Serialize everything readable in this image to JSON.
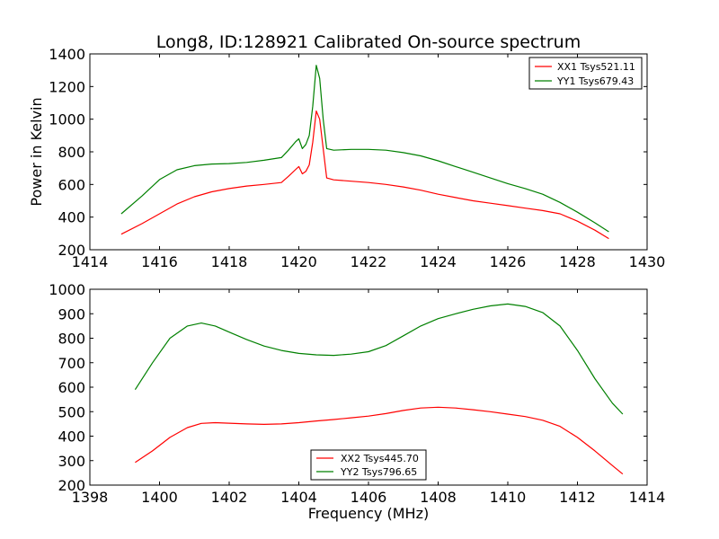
{
  "chart_data": [
    {
      "type": "line",
      "title": "Long8, ID:128921 Calibrated On-source spectrum",
      "xlabel": "",
      "ylabel": "Power in Kelvin",
      "xlim": [
        1414,
        1430
      ],
      "ylim": [
        200,
        1400
      ],
      "xticks": [
        1414,
        1416,
        1418,
        1420,
        1422,
        1424,
        1426,
        1428,
        1430
      ],
      "yticks": [
        200,
        400,
        600,
        800,
        1000,
        1200,
        1400
      ],
      "legend_position": "top-right",
      "series": [
        {
          "name": "XX1 Tsys521.11",
          "color": "#ff0000",
          "x": [
            1414.9,
            1415.5,
            1416.0,
            1416.5,
            1417.0,
            1417.5,
            1418.0,
            1418.5,
            1419.0,
            1419.5,
            1419.7,
            1419.9,
            1420.0,
            1420.1,
            1420.2,
            1420.3,
            1420.4,
            1420.5,
            1420.6,
            1420.7,
            1420.8,
            1421.0,
            1421.5,
            1422.0,
            1422.5,
            1423.0,
            1423.5,
            1424.0,
            1424.5,
            1425.0,
            1425.5,
            1426.0,
            1426.5,
            1427.0,
            1427.5,
            1428.0,
            1428.5,
            1428.9
          ],
          "y": [
            295,
            360,
            420,
            480,
            525,
            555,
            575,
            590,
            600,
            612,
            650,
            690,
            710,
            665,
            680,
            720,
            860,
            1050,
            1000,
            820,
            640,
            628,
            620,
            612,
            600,
            585,
            565,
            540,
            520,
            500,
            485,
            470,
            455,
            440,
            420,
            375,
            320,
            268
          ]
        },
        {
          "name": "YY1 Tsys679.43",
          "color": "#008000",
          "x": [
            1414.9,
            1415.5,
            1416.0,
            1416.5,
            1417.0,
            1417.5,
            1418.0,
            1418.5,
            1419.0,
            1419.5,
            1419.7,
            1419.9,
            1420.0,
            1420.1,
            1420.2,
            1420.3,
            1420.4,
            1420.5,
            1420.6,
            1420.7,
            1420.8,
            1421.0,
            1421.5,
            1422.0,
            1422.5,
            1423.0,
            1423.5,
            1424.0,
            1424.5,
            1425.0,
            1425.5,
            1426.0,
            1426.5,
            1427.0,
            1427.5,
            1428.0,
            1428.5,
            1428.9
          ],
          "y": [
            420,
            530,
            630,
            690,
            715,
            725,
            728,
            735,
            748,
            765,
            810,
            860,
            880,
            820,
            845,
            900,
            1080,
            1330,
            1250,
            1000,
            820,
            810,
            815,
            815,
            810,
            795,
            775,
            745,
            710,
            675,
            640,
            605,
            575,
            540,
            490,
            430,
            365,
            310
          ]
        }
      ]
    },
    {
      "type": "line",
      "title": "",
      "xlabel": "Frequency (MHz)",
      "ylabel": "",
      "xlim": [
        1398,
        1414
      ],
      "ylim": [
        200,
        1000
      ],
      "xticks": [
        1398,
        1400,
        1402,
        1404,
        1406,
        1408,
        1410,
        1412,
        1414
      ],
      "yticks": [
        200,
        300,
        400,
        500,
        600,
        700,
        800,
        900,
        1000
      ],
      "legend_position": "lower-center",
      "series": [
        {
          "name": "XX2 Tsys445.70",
          "color": "#ff0000",
          "x": [
            1399.3,
            1399.8,
            1400.3,
            1400.8,
            1401.2,
            1401.6,
            1402.0,
            1402.5,
            1403.0,
            1403.5,
            1404.0,
            1404.5,
            1405.0,
            1405.5,
            1406.0,
            1406.5,
            1407.0,
            1407.5,
            1408.0,
            1408.5,
            1409.0,
            1409.5,
            1410.0,
            1410.5,
            1411.0,
            1411.5,
            1412.0,
            1412.5,
            1413.0,
            1413.3
          ],
          "y": [
            293,
            340,
            395,
            435,
            452,
            455,
            453,
            450,
            448,
            450,
            455,
            462,
            468,
            475,
            482,
            492,
            505,
            515,
            518,
            515,
            508,
            500,
            490,
            480,
            465,
            440,
            395,
            340,
            280,
            245
          ]
        },
        {
          "name": "YY2 Tsys796.65",
          "color": "#008000",
          "x": [
            1399.3,
            1399.8,
            1400.3,
            1400.8,
            1401.2,
            1401.6,
            1402.0,
            1402.5,
            1403.0,
            1403.5,
            1404.0,
            1404.5,
            1405.0,
            1405.5,
            1406.0,
            1406.5,
            1407.0,
            1407.5,
            1408.0,
            1408.5,
            1409.0,
            1409.5,
            1410.0,
            1410.5,
            1411.0,
            1411.5,
            1412.0,
            1412.5,
            1413.0,
            1413.3
          ],
          "y": [
            590,
            700,
            800,
            850,
            862,
            850,
            825,
            795,
            768,
            750,
            738,
            732,
            730,
            735,
            745,
            770,
            810,
            850,
            880,
            900,
            918,
            932,
            940,
            930,
            905,
            850,
            750,
            635,
            535,
            490
          ]
        }
      ]
    }
  ]
}
